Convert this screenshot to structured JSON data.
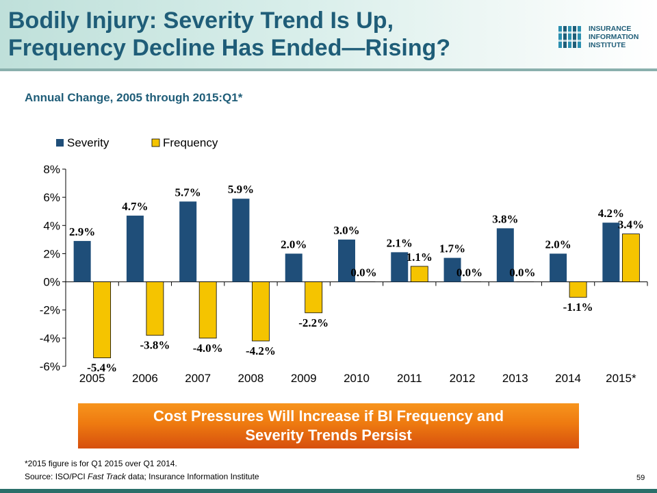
{
  "slide": {
    "title_line1": "Bodily Injury: Severity Trend Is Up,",
    "title_line2": "Frequency Decline Has Ended—Rising?",
    "subtitle": "Annual Change, 2005 through 2015:Q1*",
    "banner_line1": "Cost Pressures Will Increase if BI Frequency and",
    "banner_line2": "Severity Trends Persist",
    "footnote": "*2015 figure is for Q1 2015 over Q1 2014.",
    "source_prefix": "Source: ISO/PCI ",
    "source_italic": "Fast Track",
    "source_suffix": " data; Insurance Information Institute",
    "page_number": "59"
  },
  "logo": {
    "line1": "INSURANCE",
    "line2": "INFORMATION",
    "line3": "INSTITUTE"
  },
  "colors": {
    "severity": "#1f4e79",
    "frequency": "#f5c400",
    "title": "#1f5d78",
    "banner": "#ee7a10"
  },
  "chart_data": {
    "type": "bar",
    "categories": [
      "2005",
      "2006",
      "2007",
      "2008",
      "2009",
      "2010",
      "2011",
      "2012",
      "2013",
      "2014",
      "2015*"
    ],
    "series": [
      {
        "name": "Severity",
        "values": [
          2.9,
          4.7,
          5.7,
          5.9,
          2.0,
          3.0,
          2.1,
          1.7,
          3.8,
          2.0,
          4.2
        ],
        "labels": [
          "2.9%",
          "4.7%",
          "5.7%",
          "5.9%",
          "2.0%",
          "3.0%",
          "2.1%",
          "1.7%",
          "3.8%",
          "2.0%",
          "4.2%"
        ]
      },
      {
        "name": "Frequency",
        "values": [
          -5.4,
          -3.8,
          -4.0,
          -4.2,
          -2.2,
          0.0,
          1.1,
          0.0,
          0.0,
          -1.1,
          3.4
        ],
        "labels": [
          "-5.4%",
          "-3.8%",
          "-4.0%",
          "-4.2%",
          "-2.2%",
          "0.0%",
          "1.1%",
          "0.0%",
          "0.0%",
          "-1.1%",
          "3.4%"
        ]
      }
    ],
    "ylim": [
      -6,
      8
    ],
    "yticks": [
      "-6%",
      "-4%",
      "-2%",
      "0%",
      "2%",
      "4%",
      "6%",
      "8%"
    ],
    "legend_position": "top-left",
    "grid": false
  }
}
